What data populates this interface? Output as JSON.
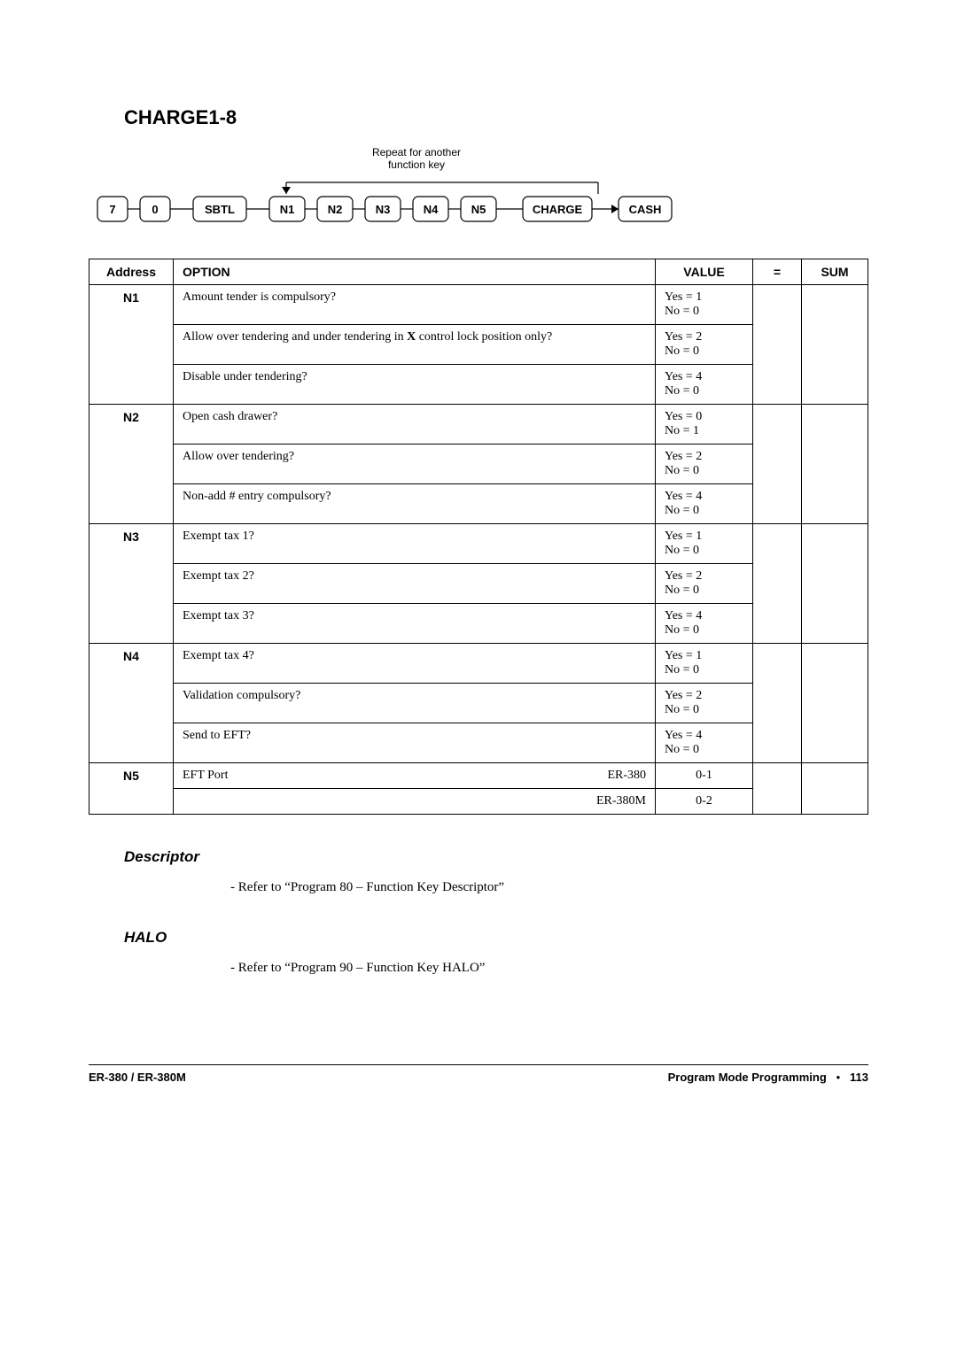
{
  "title": "CHARGE1-8",
  "flow": {
    "repeat_label": "Repeat for another\nfunction key",
    "boxes": [
      "7",
      "0",
      "SBTL",
      "N1",
      "N2",
      "N3",
      "N4",
      "N5",
      "CHARGE",
      "CASH"
    ],
    "box_style": {
      "fill": "#ffffff",
      "stroke": "#000000",
      "stroke_width": 1.2,
      "corner_radius": 6,
      "font_size": 13,
      "font_weight": "bold",
      "font_family": "Arial"
    },
    "line_style": {
      "stroke": "#000000",
      "stroke_width": 1.2
    }
  },
  "table": {
    "headers": [
      "Address",
      "OPTION",
      "VALUE",
      "=",
      "SUM"
    ],
    "groups": [
      {
        "address": "N1",
        "rows": [
          {
            "option": "Amount tender is compulsory?",
            "value": "Yes = 1\nNo = 0"
          },
          {
            "option": "Allow over tendering and under tendering in X control lock position only?",
            "value": "Yes = 2\nNo = 0",
            "bold_frag": "X"
          },
          {
            "option": "Disable under tendering?",
            "value": "Yes = 4\nNo = 0"
          }
        ]
      },
      {
        "address": "N2",
        "rows": [
          {
            "option": "Open cash drawer?",
            "value": "Yes = 0\nNo = 1"
          },
          {
            "option": "Allow over tendering?",
            "value": "Yes = 2\nNo = 0"
          },
          {
            "option": "Non-add # entry compulsory?",
            "value": "Yes = 4\nNo = 0"
          }
        ]
      },
      {
        "address": "N3",
        "rows": [
          {
            "option": "Exempt tax 1?",
            "value": "Yes = 1\nNo = 0"
          },
          {
            "option": "Exempt tax 2?",
            "value": "Yes = 2\nNo = 0"
          },
          {
            "option": "Exempt tax 3?",
            "value": "Yes = 4\nNo = 0"
          }
        ]
      },
      {
        "address": "N4",
        "rows": [
          {
            "option": "Exempt tax 4?",
            "value": "Yes = 1\nNo = 0"
          },
          {
            "option": "Validation compulsory?",
            "value": "Yes = 2\nNo = 0"
          },
          {
            "option": "Send to EFT?",
            "value": "Yes = 4\nNo = 0"
          }
        ]
      },
      {
        "address": "N5",
        "rows": [
          {
            "option_left": "EFT Port",
            "option_right": "ER-380",
            "value": "0-1",
            "value_center": true
          },
          {
            "option_left": "",
            "option_right": "ER-380M",
            "value": "0-2",
            "value_center": true
          }
        ]
      }
    ]
  },
  "descriptor": {
    "heading": "Descriptor",
    "text": "- Refer to “Program 80 – Function Key Descriptor”"
  },
  "halo": {
    "heading": "HALO",
    "text": "- Refer to “Program 90 – Function Key HALO”"
  },
  "footer": {
    "left": "ER-380 / ER-380M",
    "right_label": "Program Mode Programming",
    "bullet": "•",
    "page": "113"
  }
}
